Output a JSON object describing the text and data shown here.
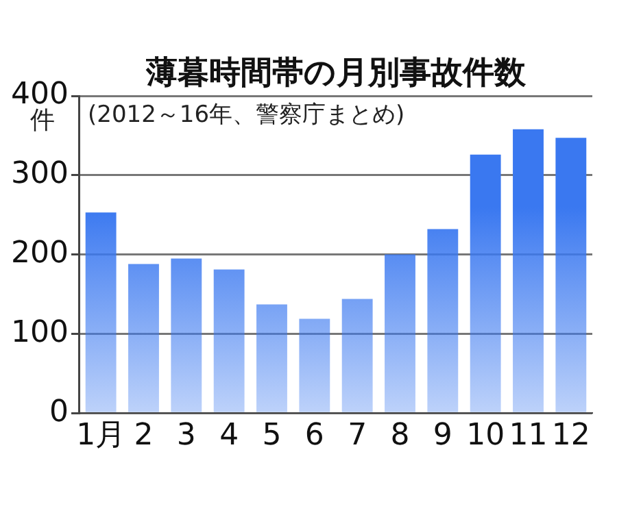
{
  "chart_data": {
    "type": "bar",
    "title": "薄暮時間帯の月別事故件数",
    "subtitle": "(2012～16年、警察庁まとめ)",
    "ylabel": "件",
    "categories": [
      "1月",
      "2",
      "3",
      "4",
      "5",
      "6",
      "7",
      "8",
      "9",
      "10",
      "11",
      "12"
    ],
    "values": [
      253,
      188,
      195,
      181,
      137,
      119,
      144,
      200,
      232,
      326,
      358,
      347
    ],
    "color": "#3a78f0",
    "ylim": [
      0,
      400
    ],
    "yticks": [
      0,
      100,
      200,
      300,
      400
    ],
    "grid": "y",
    "legend": false
  }
}
